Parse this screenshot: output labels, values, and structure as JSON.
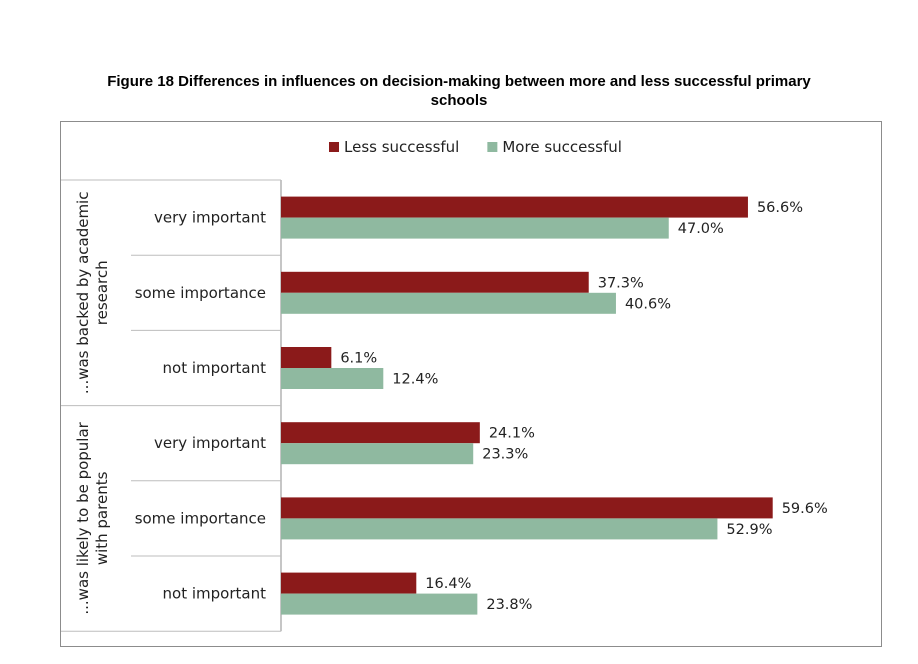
{
  "figure": {
    "title_line1": "Figure 18 Differences in influences on decision-making between more and less successful primary",
    "title_line2": "schools"
  },
  "chart_data": {
    "type": "bar",
    "orientation": "horizontal",
    "legend_position": "top",
    "grid": false,
    "xlim": [
      0,
      70
    ],
    "value_format": "percent",
    "groups": [
      {
        "label_lines": [
          "...was backed by academic",
          "research"
        ],
        "categories": [
          "very important",
          "some importance",
          "not important"
        ]
      },
      {
        "label_lines": [
          "...was likely to be popular",
          "with parents"
        ],
        "categories": [
          "very important",
          "some importance",
          "not important"
        ]
      }
    ],
    "series": [
      {
        "name": "Less successful",
        "color": "#8B1A1A",
        "values": [
          56.6,
          37.3,
          6.1,
          24.1,
          59.6,
          16.4
        ]
      },
      {
        "name": "More successful",
        "color": "#8FB9A0",
        "values": [
          47.0,
          40.6,
          12.4,
          23.3,
          52.9,
          23.8
        ]
      }
    ]
  }
}
